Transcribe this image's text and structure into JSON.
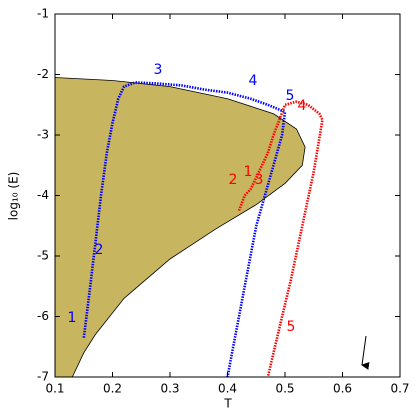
{
  "chart_data": {
    "type": "line",
    "xlabel": "T",
    "ylabel": "log₁₀ (E)",
    "xlim": [
      0.1,
      0.7
    ],
    "ylim": [
      -7,
      -1
    ],
    "xticks": [
      0.1,
      0.2,
      0.3,
      0.4,
      0.5,
      0.6,
      0.7
    ],
    "yticks": [
      -7,
      -6,
      -5,
      -4,
      -3,
      -2,
      -1
    ],
    "region": {
      "color": "#c8b560",
      "x": [
        0.1,
        0.2,
        0.3,
        0.4,
        0.48,
        0.52,
        0.535,
        0.53,
        0.5,
        0.45,
        0.38,
        0.3,
        0.22,
        0.17,
        0.15,
        0.13,
        0.1
      ],
      "y": [
        -2.05,
        -2.1,
        -2.2,
        -2.4,
        -2.65,
        -2.9,
        -3.2,
        -3.5,
        -3.8,
        -4.15,
        -4.55,
        -5.05,
        -5.7,
        -6.3,
        -6.6,
        -7,
        -7
      ]
    },
    "series": [
      {
        "color": "#0000ff",
        "x": [
          0.15,
          0.16,
          0.17,
          0.18,
          0.19,
          0.2,
          0.21,
          0.22,
          0.24,
          0.28,
          0.32,
          0.36,
          0.4,
          0.44,
          0.47,
          0.5,
          0.495,
          0.48,
          0.465,
          0.45,
          0.44,
          0.43,
          0.42,
          0.41,
          0.4
        ],
        "values": [
          -6.35,
          -5.6,
          -4.8,
          -4.0,
          -3.3,
          -2.8,
          -2.4,
          -2.2,
          -2.13,
          -2.15,
          -2.18,
          -2.25,
          -2.3,
          -2.4,
          -2.5,
          -2.62,
          -3.0,
          -3.5,
          -4.0,
          -4.5,
          -5.0,
          -5.5,
          -6.0,
          -6.5,
          -7.0
        ],
        "annotations": [
          "1",
          "2",
          "3",
          "4",
          "5"
        ]
      },
      {
        "color": "#ff0000",
        "x": [
          0.42,
          0.43,
          0.44,
          0.45,
          0.46,
          0.47,
          0.48,
          0.49,
          0.5,
          0.52,
          0.54,
          0.56,
          0.565,
          0.55,
          0.53,
          0.51,
          0.495,
          0.48,
          0.47
        ],
        "values": [
          -4.25,
          -4.0,
          -3.9,
          -3.7,
          -3.5,
          -3.3,
          -3.0,
          -2.75,
          -2.5,
          -2.45,
          -2.5,
          -2.65,
          -2.75,
          -3.6,
          -4.5,
          -5.4,
          -6.0,
          -6.6,
          -7.0
        ],
        "annotations": [
          "1",
          "2",
          "3",
          "4",
          "5"
        ]
      }
    ]
  }
}
